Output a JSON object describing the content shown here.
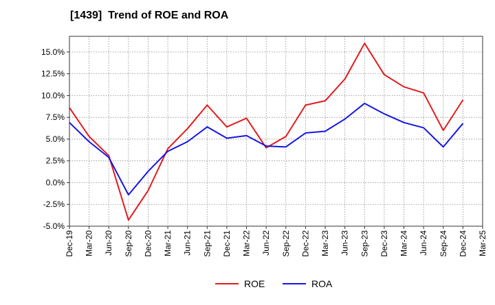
{
  "chart_data": {
    "type": "line",
    "title": "[1439]  Trend of ROE and ROA",
    "xlabel": "",
    "ylabel": "",
    "categories": [
      "Dec-19",
      "Mar-20",
      "Jun-20",
      "Sep-20",
      "Dec-20",
      "Mar-21",
      "Jun-21",
      "Sep-21",
      "Dec-21",
      "Mar-22",
      "Jun-22",
      "Sep-22",
      "Dec-22",
      "Mar-23",
      "Jun-23",
      "Sep-23",
      "Dec-23",
      "Mar-24",
      "Jun-24",
      "Sep-24",
      "Dec-24",
      "Mar-25"
    ],
    "yticks": [
      "15.0%",
      "12.5%",
      "10.0%",
      "7.5%",
      "5.0%",
      "2.5%",
      "0.0%",
      "-2.5%",
      "-5.0%"
    ],
    "ylim": [
      -5.0,
      16.8
    ],
    "grid": true,
    "legend": "bottom-center",
    "series": [
      {
        "name": "ROE",
        "color": "#e31a1c",
        "values": [
          8.6,
          5.3,
          3.1,
          -4.3,
          -0.9,
          3.9,
          6.2,
          8.9,
          6.4,
          7.4,
          4.0,
          5.3,
          8.9,
          9.4,
          11.9,
          16.0,
          12.4,
          11.0,
          10.3,
          6.0,
          9.5,
          null
        ]
      },
      {
        "name": "ROA",
        "color": "#1414e6",
        "values": [
          6.9,
          4.7,
          2.9,
          -1.4,
          1.3,
          3.6,
          4.7,
          6.4,
          5.1,
          5.4,
          4.2,
          4.1,
          5.7,
          5.9,
          7.3,
          9.1,
          7.9,
          6.9,
          6.3,
          4.1,
          6.8,
          null
        ]
      }
    ]
  }
}
